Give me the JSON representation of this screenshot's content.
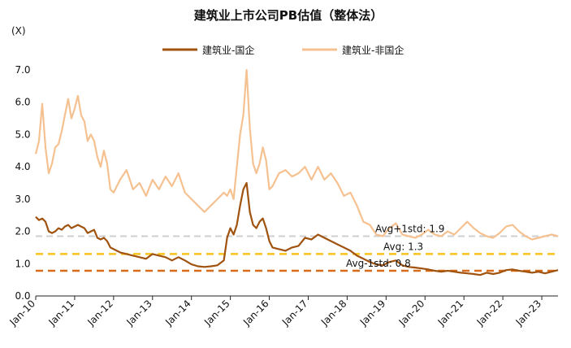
{
  "chart_data": {
    "type": "line",
    "title": "建筑业上市公司PB估值（整体法）",
    "unit_label": "(X)",
    "ylim": [
      0,
      7.0
    ],
    "yticks": [
      "0.0",
      "1.0",
      "2.0",
      "3.0",
      "4.0",
      "5.0",
      "6.0",
      "7.0"
    ],
    "xlim": [
      "2010-01",
      "2023-06"
    ],
    "xticks": [
      {
        "date": "2010-01",
        "label": "Jan-10"
      },
      {
        "date": "2011-01",
        "label": "Jan-11"
      },
      {
        "date": "2012-01",
        "label": "Jan-12"
      },
      {
        "date": "2013-01",
        "label": "Jan-13"
      },
      {
        "date": "2014-01",
        "label": "Jan-14"
      },
      {
        "date": "2015-01",
        "label": "Jan-15"
      },
      {
        "date": "2016-01",
        "label": "Jan-16"
      },
      {
        "date": "2017-01",
        "label": "Jan-17"
      },
      {
        "date": "2018-01",
        "label": "Jan-18"
      },
      {
        "date": "2019-01",
        "label": "Jan-19"
      },
      {
        "date": "2020-01",
        "label": "Jan-20"
      },
      {
        "date": "2021-01",
        "label": "Jan-21"
      },
      {
        "date": "2022-01",
        "label": "Jan-22"
      },
      {
        "date": "2023-01",
        "label": "Jan-23"
      }
    ],
    "legend_position": "top-center",
    "grid": false,
    "series": [
      {
        "name": "建筑业-国企",
        "color": "#a0520f",
        "points": [
          [
            "2010-01",
            2.45
          ],
          [
            "2010-02",
            2.35
          ],
          [
            "2010-03",
            2.4
          ],
          [
            "2010-04",
            2.3
          ],
          [
            "2010-05",
            2.0
          ],
          [
            "2010-06",
            1.95
          ],
          [
            "2010-07",
            2.0
          ],
          [
            "2010-08",
            2.1
          ],
          [
            "2010-09",
            2.05
          ],
          [
            "2010-10",
            2.15
          ],
          [
            "2010-11",
            2.2
          ],
          [
            "2010-12",
            2.1
          ],
          [
            "2011-01",
            2.15
          ],
          [
            "2011-02",
            2.2
          ],
          [
            "2011-03",
            2.15
          ],
          [
            "2011-04",
            2.1
          ],
          [
            "2011-05",
            1.95
          ],
          [
            "2011-06",
            2.0
          ],
          [
            "2011-07",
            2.05
          ],
          [
            "2011-08",
            1.8
          ],
          [
            "2011-09",
            1.75
          ],
          [
            "2011-10",
            1.8
          ],
          [
            "2011-11",
            1.7
          ],
          [
            "2011-12",
            1.5
          ],
          [
            "2012-01",
            1.45
          ],
          [
            "2012-03",
            1.35
          ],
          [
            "2012-05",
            1.3
          ],
          [
            "2012-07",
            1.25
          ],
          [
            "2012-09",
            1.2
          ],
          [
            "2012-11",
            1.15
          ],
          [
            "2013-01",
            1.3
          ],
          [
            "2013-03",
            1.25
          ],
          [
            "2013-05",
            1.2
          ],
          [
            "2013-07",
            1.1
          ],
          [
            "2013-09",
            1.2
          ],
          [
            "2013-11",
            1.1
          ],
          [
            "2014-01",
            0.98
          ],
          [
            "2014-03",
            0.92
          ],
          [
            "2014-05",
            0.9
          ],
          [
            "2014-07",
            0.92
          ],
          [
            "2014-09",
            0.95
          ],
          [
            "2014-11",
            1.1
          ],
          [
            "2014-12",
            1.8
          ],
          [
            "2015-01",
            2.1
          ],
          [
            "2015-02",
            1.9
          ],
          [
            "2015-03",
            2.2
          ],
          [
            "2015-04",
            2.8
          ],
          [
            "2015-05",
            3.3
          ],
          [
            "2015-06",
            3.5
          ],
          [
            "2015-07",
            2.6
          ],
          [
            "2015-08",
            2.2
          ],
          [
            "2015-09",
            2.1
          ],
          [
            "2015-10",
            2.3
          ],
          [
            "2015-11",
            2.4
          ],
          [
            "2015-12",
            2.1
          ],
          [
            "2016-01",
            1.7
          ],
          [
            "2016-02",
            1.5
          ],
          [
            "2016-04",
            1.45
          ],
          [
            "2016-06",
            1.4
          ],
          [
            "2016-08",
            1.5
          ],
          [
            "2016-10",
            1.55
          ],
          [
            "2016-12",
            1.8
          ],
          [
            "2017-02",
            1.75
          ],
          [
            "2017-04",
            1.9
          ],
          [
            "2017-06",
            1.8
          ],
          [
            "2017-08",
            1.7
          ],
          [
            "2017-10",
            1.6
          ],
          [
            "2017-12",
            1.5
          ],
          [
            "2018-02",
            1.4
          ],
          [
            "2018-04",
            1.25
          ],
          [
            "2018-06",
            1.15
          ],
          [
            "2018-08",
            1.05
          ],
          [
            "2018-10",
            0.98
          ],
          [
            "2018-12",
            0.95
          ],
          [
            "2019-02",
            1.05
          ],
          [
            "2019-04",
            1.1
          ],
          [
            "2019-06",
            0.95
          ],
          [
            "2019-08",
            0.9
          ],
          [
            "2019-10",
            0.88
          ],
          [
            "2019-12",
            0.85
          ],
          [
            "2020-02",
            0.82
          ],
          [
            "2020-04",
            0.78
          ],
          [
            "2020-06",
            0.75
          ],
          [
            "2020-08",
            0.78
          ],
          [
            "2020-10",
            0.75
          ],
          [
            "2020-12",
            0.72
          ],
          [
            "2021-02",
            0.7
          ],
          [
            "2021-04",
            0.68
          ],
          [
            "2021-06",
            0.65
          ],
          [
            "2021-08",
            0.72
          ],
          [
            "2021-10",
            0.68
          ],
          [
            "2021-12",
            0.72
          ],
          [
            "2022-02",
            0.8
          ],
          [
            "2022-04",
            0.82
          ],
          [
            "2022-06",
            0.78
          ],
          [
            "2022-08",
            0.75
          ],
          [
            "2022-10",
            0.72
          ],
          [
            "2022-12",
            0.75
          ],
          [
            "2023-02",
            0.7
          ],
          [
            "2023-04",
            0.75
          ],
          [
            "2023-06",
            0.8
          ]
        ]
      },
      {
        "name": "建筑业-非国企",
        "color": "#f5c190",
        "points": [
          [
            "2010-01",
            4.4
          ],
          [
            "2010-02",
            4.8
          ],
          [
            "2010-03",
            5.95
          ],
          [
            "2010-04",
            4.6
          ],
          [
            "2010-05",
            3.8
          ],
          [
            "2010-06",
            4.1
          ],
          [
            "2010-07",
            4.6
          ],
          [
            "2010-08",
            4.7
          ],
          [
            "2010-09",
            5.1
          ],
          [
            "2010-10",
            5.6
          ],
          [
            "2010-11",
            6.1
          ],
          [
            "2010-12",
            5.5
          ],
          [
            "2011-01",
            5.8
          ],
          [
            "2011-02",
            6.2
          ],
          [
            "2011-03",
            5.6
          ],
          [
            "2011-04",
            5.4
          ],
          [
            "2011-05",
            4.8
          ],
          [
            "2011-06",
            5.0
          ],
          [
            "2011-07",
            4.8
          ],
          [
            "2011-08",
            4.3
          ],
          [
            "2011-09",
            4.0
          ],
          [
            "2011-10",
            4.5
          ],
          [
            "2011-11",
            4.1
          ],
          [
            "2011-12",
            3.3
          ],
          [
            "2012-01",
            3.2
          ],
          [
            "2012-03",
            3.6
          ],
          [
            "2012-05",
            3.9
          ],
          [
            "2012-07",
            3.3
          ],
          [
            "2012-09",
            3.5
          ],
          [
            "2012-11",
            3.1
          ],
          [
            "2013-01",
            3.6
          ],
          [
            "2013-03",
            3.3
          ],
          [
            "2013-05",
            3.7
          ],
          [
            "2013-07",
            3.4
          ],
          [
            "2013-09",
            3.8
          ],
          [
            "2013-11",
            3.2
          ],
          [
            "2014-01",
            3.0
          ],
          [
            "2014-03",
            2.8
          ],
          [
            "2014-05",
            2.6
          ],
          [
            "2014-07",
            2.8
          ],
          [
            "2014-09",
            3.0
          ],
          [
            "2014-11",
            3.2
          ],
          [
            "2014-12",
            3.1
          ],
          [
            "2015-01",
            3.3
          ],
          [
            "2015-02",
            3.0
          ],
          [
            "2015-03",
            4.0
          ],
          [
            "2015-04",
            5.0
          ],
          [
            "2015-05",
            5.6
          ],
          [
            "2015-06",
            7.0
          ],
          [
            "2015-07",
            5.2
          ],
          [
            "2015-08",
            4.1
          ],
          [
            "2015-09",
            3.8
          ],
          [
            "2015-10",
            4.1
          ],
          [
            "2015-11",
            4.6
          ],
          [
            "2015-12",
            4.2
          ],
          [
            "2016-01",
            3.3
          ],
          [
            "2016-02",
            3.4
          ],
          [
            "2016-04",
            3.8
          ],
          [
            "2016-06",
            3.9
          ],
          [
            "2016-08",
            3.7
          ],
          [
            "2016-10",
            3.8
          ],
          [
            "2016-12",
            4.0
          ],
          [
            "2017-02",
            3.6
          ],
          [
            "2017-04",
            4.0
          ],
          [
            "2017-06",
            3.6
          ],
          [
            "2017-08",
            3.8
          ],
          [
            "2017-10",
            3.5
          ],
          [
            "2017-12",
            3.1
          ],
          [
            "2018-02",
            3.2
          ],
          [
            "2018-04",
            2.8
          ],
          [
            "2018-06",
            2.3
          ],
          [
            "2018-08",
            2.2
          ],
          [
            "2018-10",
            1.9
          ],
          [
            "2018-12",
            1.85
          ],
          [
            "2019-02",
            2.1
          ],
          [
            "2019-04",
            2.25
          ],
          [
            "2019-06",
            1.9
          ],
          [
            "2019-08",
            1.85
          ],
          [
            "2019-10",
            1.8
          ],
          [
            "2019-12",
            1.9
          ],
          [
            "2020-02",
            2.05
          ],
          [
            "2020-04",
            1.9
          ],
          [
            "2020-06",
            1.85
          ],
          [
            "2020-08",
            2.0
          ],
          [
            "2020-10",
            1.9
          ],
          [
            "2020-12",
            2.1
          ],
          [
            "2021-02",
            2.3
          ],
          [
            "2021-04",
            2.1
          ],
          [
            "2021-06",
            1.95
          ],
          [
            "2021-08",
            1.85
          ],
          [
            "2021-10",
            1.8
          ],
          [
            "2021-12",
            1.95
          ],
          [
            "2022-02",
            2.15
          ],
          [
            "2022-04",
            2.2
          ],
          [
            "2022-06",
            2.0
          ],
          [
            "2022-08",
            1.85
          ],
          [
            "2022-10",
            1.75
          ],
          [
            "2022-12",
            1.8
          ],
          [
            "2023-02",
            1.85
          ],
          [
            "2023-04",
            1.9
          ],
          [
            "2023-06",
            1.85
          ]
        ]
      }
    ],
    "reference_lines": [
      {
        "label": "Avg+1std: 1.9",
        "value": 1.85,
        "color": "#cfcfcf"
      },
      {
        "label": "Avg: 1.3",
        "value": 1.3,
        "color": "#f7c21b"
      },
      {
        "label": "Avg-1std: 0.8",
        "value": 0.78,
        "color": "#d96c1a"
      }
    ]
  }
}
